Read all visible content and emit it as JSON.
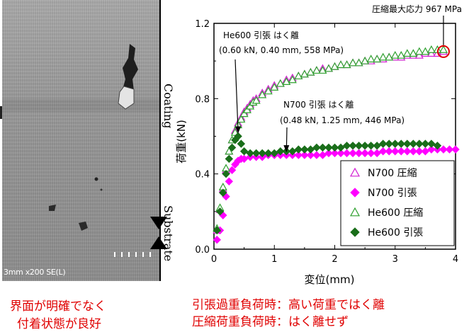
{
  "sem_image": {
    "caption": "3mm x200 SE(L)",
    "coating_label": "Coating",
    "substrate_label": "Substrate",
    "note_line1": "界面が明確でなく",
    "note_line2": "付着状態が良好"
  },
  "chart_notes": {
    "line1": "引張過重負荷時：高い荷重ではく離",
    "line2": "圧縮荷重負荷時：はく離せず"
  },
  "chart_data": {
    "type": "scatter",
    "xlabel": "変位(mm)",
    "ylabel": "荷重(kN)",
    "xlim": [
      0,
      4
    ],
    "ylim": [
      0,
      1.2
    ],
    "xticks": [
      "0",
      "1",
      "2",
      "3",
      "4"
    ],
    "yticks": [
      "0.0",
      "0.4",
      "0.8",
      "1.2"
    ],
    "grid": false,
    "legend_position": "bottom-right",
    "series": [
      {
        "name": "N700 圧縮",
        "marker": "triangle-open",
        "color": "#d21ed2",
        "x": [
          0.05,
          0.1,
          0.15,
          0.2,
          0.25,
          0.3,
          0.35,
          0.4,
          0.45,
          0.5,
          0.55,
          0.6,
          0.65,
          0.7,
          0.8,
          0.9,
          1.0,
          1.1,
          1.2,
          1.3,
          1.4,
          1.5,
          1.6,
          1.7,
          1.8,
          1.9,
          2.0,
          2.1,
          2.2,
          2.3,
          2.4,
          2.5,
          2.6,
          2.7,
          2.8,
          2.9,
          3.0,
          3.1,
          3.2,
          3.3,
          3.4,
          3.5,
          3.6,
          3.7,
          3.8
        ],
        "y": [
          0.1,
          0.21,
          0.32,
          0.42,
          0.52,
          0.58,
          0.63,
          0.67,
          0.7,
          0.73,
          0.75,
          0.77,
          0.79,
          0.8,
          0.83,
          0.85,
          0.87,
          0.88,
          0.9,
          0.91,
          0.92,
          0.93,
          0.94,
          0.95,
          0.96,
          0.96,
          0.97,
          0.98,
          0.98,
          0.99,
          0.99,
          1.0,
          1.0,
          1.01,
          1.01,
          1.02,
          1.02,
          1.02,
          1.03,
          1.03,
          1.03,
          1.04,
          1.04,
          1.04,
          1.05
        ]
      },
      {
        "name": "N700 引張",
        "marker": "diamond-filled",
        "color": "#ff00ff",
        "x": [
          0.05,
          0.1,
          0.15,
          0.2,
          0.25,
          0.3,
          0.35,
          0.4,
          0.45,
          0.5,
          0.6,
          0.7,
          0.8,
          0.9,
          1.0,
          1.1,
          1.2,
          1.3,
          1.4,
          1.5,
          1.6,
          1.7,
          1.8,
          1.9,
          2.0,
          2.1,
          2.2,
          2.3,
          2.4,
          2.5,
          2.6,
          2.7,
          2.8,
          2.9,
          3.0,
          3.1,
          3.2,
          3.3,
          3.4,
          3.5,
          3.6,
          3.7,
          3.8,
          3.9,
          4.0
        ],
        "y": [
          0.05,
          0.1,
          0.18,
          0.28,
          0.36,
          0.42,
          0.45,
          0.47,
          0.48,
          0.48,
          0.49,
          0.49,
          0.49,
          0.5,
          0.5,
          0.5,
          0.5,
          0.5,
          0.5,
          0.5,
          0.5,
          0.5,
          0.5,
          0.51,
          0.51,
          0.51,
          0.51,
          0.51,
          0.51,
          0.51,
          0.51,
          0.51,
          0.52,
          0.52,
          0.52,
          0.52,
          0.52,
          0.52,
          0.52,
          0.52,
          0.53,
          0.53,
          0.53,
          0.53,
          0.53
        ]
      },
      {
        "name": "He600 圧縮",
        "marker": "triangle-open",
        "color": "#2ea02e",
        "x": [
          0.05,
          0.1,
          0.15,
          0.2,
          0.25,
          0.3,
          0.35,
          0.4,
          0.45,
          0.5,
          0.55,
          0.6,
          0.65,
          0.7,
          0.8,
          0.9,
          1.0,
          1.1,
          1.2,
          1.3,
          1.4,
          1.5,
          1.6,
          1.7,
          1.8,
          1.9,
          2.0,
          2.1,
          2.2,
          2.3,
          2.4,
          2.5,
          2.6,
          2.7,
          2.8,
          2.9,
          3.0,
          3.1,
          3.2,
          3.3,
          3.4,
          3.5,
          3.6,
          3.7,
          3.8
        ],
        "y": [
          0.11,
          0.22,
          0.33,
          0.43,
          0.52,
          0.58,
          0.62,
          0.66,
          0.69,
          0.72,
          0.74,
          0.76,
          0.78,
          0.79,
          0.82,
          0.84,
          0.86,
          0.88,
          0.89,
          0.9,
          0.92,
          0.93,
          0.94,
          0.95,
          0.95,
          0.96,
          0.97,
          0.98,
          0.98,
          0.99,
          0.99,
          1.0,
          1.01,
          1.01,
          1.02,
          1.02,
          1.03,
          1.03,
          1.04,
          1.04,
          1.05,
          1.05,
          1.06,
          1.06,
          1.06
        ]
      },
      {
        "name": "He600 引張",
        "marker": "diamond-filled",
        "color": "#1a6e1a",
        "x": [
          0.05,
          0.1,
          0.15,
          0.2,
          0.25,
          0.3,
          0.35,
          0.4,
          0.45,
          0.5,
          0.6,
          0.7,
          0.8,
          0.9,
          1.0,
          1.1,
          1.2,
          1.3,
          1.4,
          1.5,
          1.6,
          1.7,
          1.8,
          1.9,
          2.0,
          2.1,
          2.2,
          2.3,
          2.4,
          2.5,
          2.6,
          2.7,
          2.8,
          2.9,
          3.0,
          3.1,
          3.2,
          3.3,
          3.4,
          3.5,
          3.6,
          3.7
        ],
        "y": [
          0.1,
          0.2,
          0.3,
          0.4,
          0.48,
          0.54,
          0.58,
          0.6,
          0.56,
          0.52,
          0.51,
          0.51,
          0.51,
          0.51,
          0.51,
          0.52,
          0.52,
          0.52,
          0.53,
          0.53,
          0.53,
          0.54,
          0.54,
          0.54,
          0.54,
          0.54,
          0.55,
          0.55,
          0.55,
          0.55,
          0.55,
          0.55,
          0.56,
          0.56,
          0.56,
          0.56,
          0.56,
          0.56,
          0.56,
          0.56,
          0.56,
          0.55
        ]
      }
    ],
    "annotations": [
      {
        "text_line1": "He600 引張 はく離",
        "text_line2": "(0.60 kN, 0.40 mm, 558 MPa)",
        "point_x": 0.4,
        "point_y": 0.6
      },
      {
        "text_line1": "N700 引張 はく離",
        "text_line2": "(0.48 kN, 1.25 mm, 446 MPa)",
        "point_x": 1.2,
        "point_y": 0.5
      },
      {
        "text_line1": "圧縮最大応力 967 MPa",
        "point_x": 3.8,
        "point_y": 1.05
      }
    ]
  }
}
